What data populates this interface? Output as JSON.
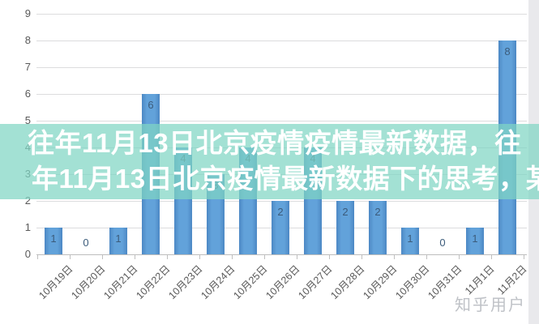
{
  "chart_data": {
    "type": "bar",
    "title": "",
    "xlabel": "",
    "ylabel": "",
    "categories": [
      "10月19日",
      "10月20日",
      "10月21日",
      "10月22日",
      "10月23日",
      "10月24日",
      "10月25日",
      "10月26日",
      "10月27日",
      "10月28日",
      "10月29日",
      "10月30日",
      "10月31日",
      "11月1日",
      "11月2日"
    ],
    "values": [
      1,
      0,
      1,
      6,
      4,
      3,
      4,
      2,
      4,
      2,
      2,
      1,
      0,
      1,
      8
    ],
    "yticks": [
      0,
      1,
      2,
      3,
      4,
      5,
      6,
      7,
      8,
      9
    ],
    "ylim": [
      0,
      9
    ],
    "grid": "horizontal",
    "legend": "none",
    "data_labels": "inside-end",
    "bar_color": "#5b9bd5",
    "bar_edge_color": "#4c88c4",
    "label_color": "#3c5c7c",
    "axis_text_color": "#595959",
    "gridline_color": "#dcdcde",
    "axis_line_color": "#bdbdbd"
  },
  "overlay": {
    "line1": "往年11月13日北京疫情疫情最新数据，往",
    "line2": "年11月13日北京疫情最新数据下的思考，某",
    "band_color": "#7fd5c4",
    "band_opacity": 0.72
  },
  "watermark": {
    "text": "知乎用户",
    "color": "#bfc2c7"
  }
}
